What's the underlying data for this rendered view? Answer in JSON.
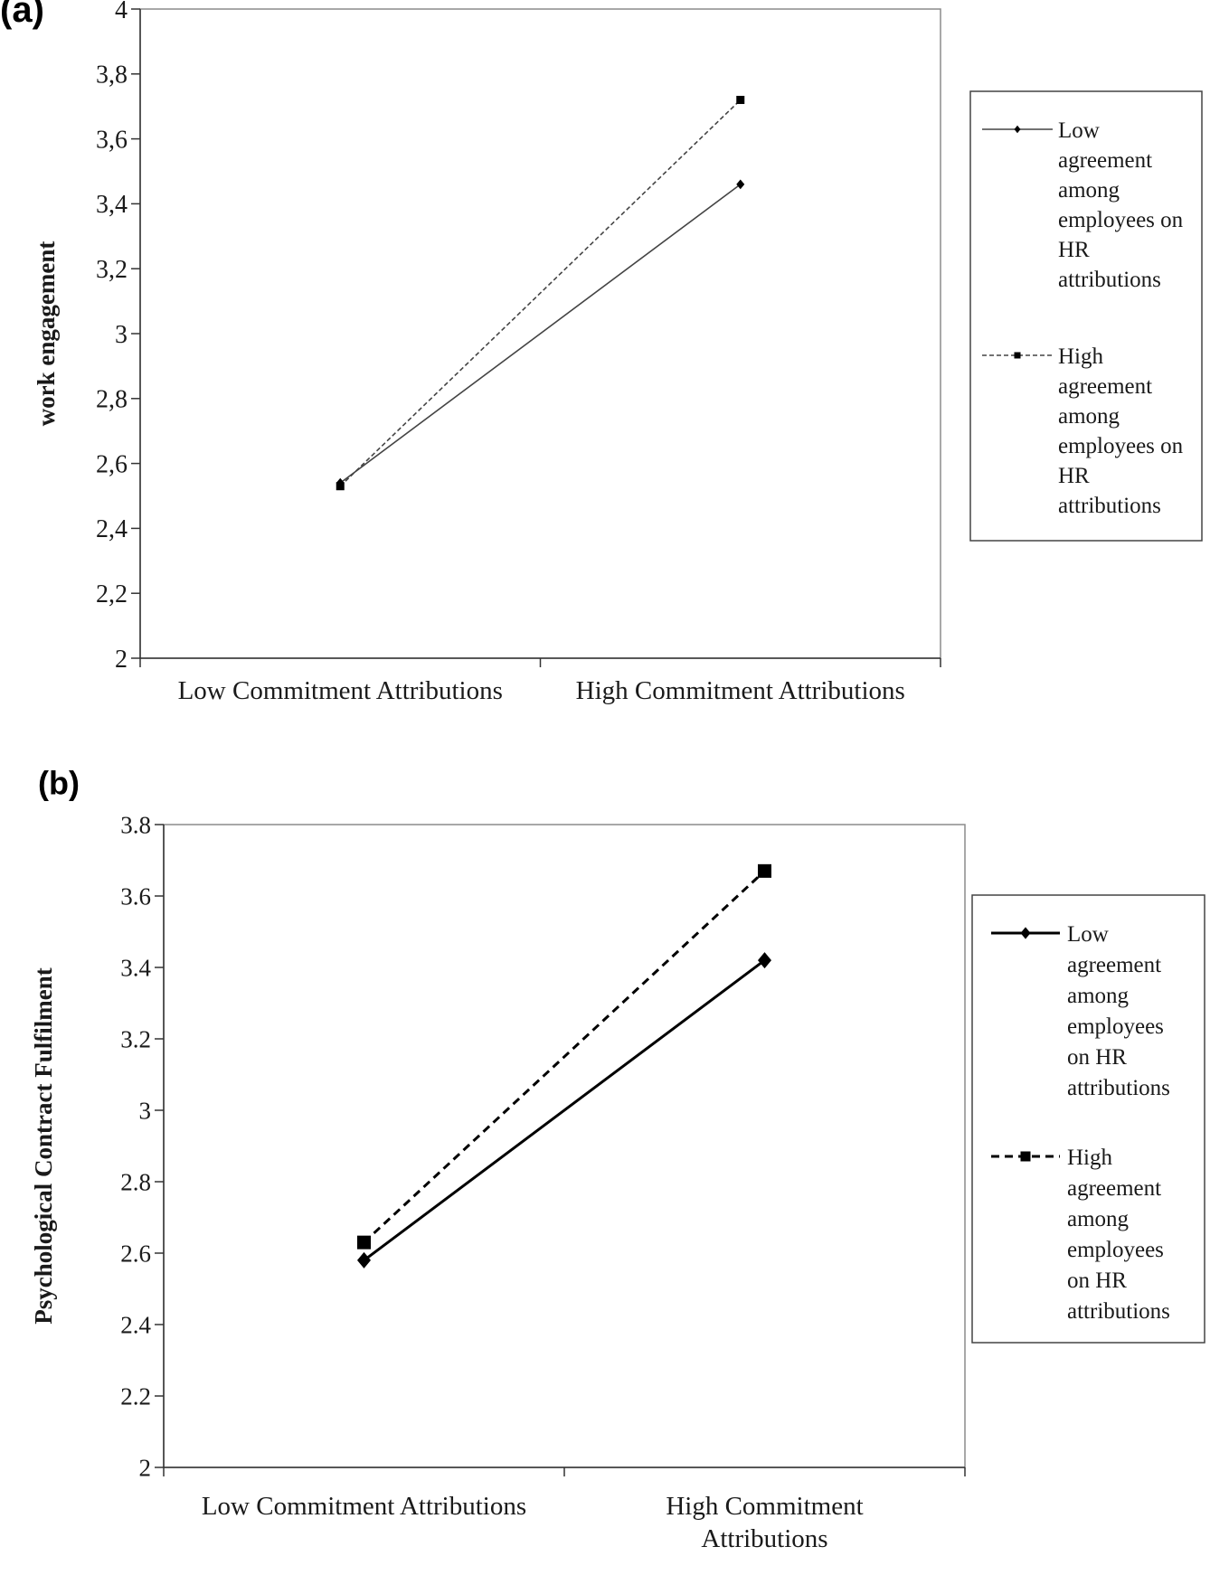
{
  "chart_data": [
    {
      "panel_label": "(a)",
      "type": "line",
      "ylabel": "work engagement",
      "categories": [
        "Low Commitment Attributions",
        "High Commitment Attributions"
      ],
      "ylim": [
        2,
        4
      ],
      "yticks": [
        "2",
        "2,2",
        "2,4",
        "2,6",
        "2,8",
        "3",
        "3,2",
        "3,4",
        "3,6",
        "3,8",
        "4"
      ],
      "grid": false,
      "legend_position": "right",
      "series": [
        {
          "name": "Low agreement among employees on HR attributions",
          "legend_lines": [
            "Low",
            "agreement",
            "among",
            "employees on",
            "HR",
            "attributions"
          ],
          "style": "solid",
          "marker": "diamond",
          "values": [
            2.54,
            3.46
          ]
        },
        {
          "name": "High agreement among employees on HR attributions",
          "legend_lines": [
            "High",
            "agreement",
            "among",
            "employees on",
            "HR",
            "attributions"
          ],
          "style": "dashed",
          "marker": "square",
          "values": [
            2.53,
            3.72
          ]
        }
      ]
    },
    {
      "panel_label": "(b)",
      "type": "line",
      "ylabel": "Psychological Contract Fulfilment",
      "categories": [
        "Low Commitment Attributions",
        "High Commitment Attributions"
      ],
      "category_lines": [
        [
          "Low Commitment Attributions"
        ],
        [
          "High Commitment",
          "Attributions"
        ]
      ],
      "ylim": [
        2,
        3.8
      ],
      "yticks": [
        "2",
        "2.2",
        "2.4",
        "2.6",
        "2.8",
        "3",
        "3.2",
        "3.4",
        "3.6",
        "3.8"
      ],
      "grid": false,
      "legend_position": "right",
      "series": [
        {
          "name": "Low agreement among employees on HR attributions",
          "legend_lines": [
            "Low",
            "agreement",
            "among",
            "employees",
            "on HR",
            "attributions"
          ],
          "style": "solid",
          "marker": "diamond",
          "values": [
            2.58,
            3.42
          ]
        },
        {
          "name": "High agreement among employees on HR attributions",
          "legend_lines": [
            "High",
            "agreement",
            "among",
            "employees",
            "on HR",
            "attributions"
          ],
          "style": "dashed",
          "marker": "square",
          "values": [
            2.63,
            3.67
          ]
        }
      ]
    }
  ]
}
